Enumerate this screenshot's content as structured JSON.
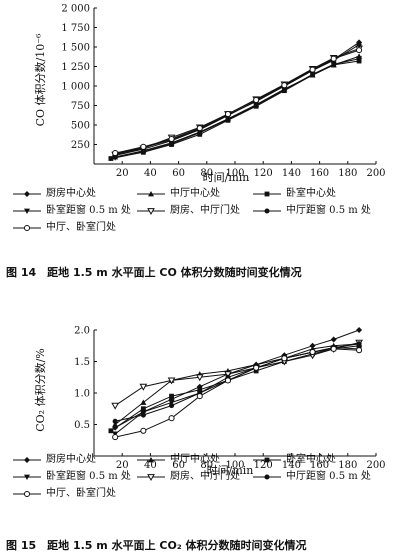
{
  "chart_data": [
    {
      "type": "line",
      "ylabel": "CO 体积分数/10⁻⁶",
      "xlabel": "时间/min",
      "xlim": [
        0,
        200
      ],
      "ylim": [
        0,
        2000
      ],
      "xticks": [
        "20",
        "40",
        "60",
        "80",
        "100",
        "120",
        "140",
        "160",
        "180",
        "200"
      ],
      "yticks": [
        "250",
        "500",
        "750",
        "1 000",
        "1 250",
        "1 500",
        "1 750",
        "2 000"
      ],
      "series": [
        {
          "name": "厨房中心处",
          "marker": "diamond",
          "x": [
            15,
            35,
            55,
            75,
            95,
            115,
            135,
            155,
            170,
            188
          ],
          "y": [
            110,
            190,
            300,
            440,
            620,
            810,
            1000,
            1200,
            1340,
            1560
          ]
        },
        {
          "name": "中厅中心处",
          "marker": "triangle",
          "x": [
            15,
            35,
            55,
            75,
            95,
            115,
            135,
            155,
            170,
            188
          ],
          "y": [
            90,
            170,
            270,
            410,
            580,
            760,
            960,
            1140,
            1270,
            1380
          ]
        },
        {
          "name": "卧室中心处",
          "marker": "square",
          "x": [
            12,
            35,
            55,
            75,
            95,
            115,
            135,
            155,
            170,
            188
          ],
          "y": [
            70,
            150,
            250,
            380,
            560,
            740,
            940,
            1140,
            1270,
            1320
          ]
        },
        {
          "name": "卧室距窗 0.5 m 处",
          "marker": "triangle-down",
          "x": [
            15,
            35,
            55,
            75,
            95,
            115,
            135,
            155,
            170,
            188
          ],
          "y": [
            80,
            160,
            260,
            400,
            570,
            750,
            950,
            1150,
            1280,
            1350
          ]
        },
        {
          "name": "厨房、中厅门处",
          "marker": "triangle-open",
          "x": [
            15,
            35,
            55,
            75,
            95,
            115,
            135,
            155,
            170,
            188
          ],
          "y": [
            120,
            200,
            340,
            470,
            640,
            830,
            1020,
            1220,
            1360,
            1480
          ]
        },
        {
          "name": "中厅距窗 0.5 m 处",
          "marker": "circle",
          "x": [
            15,
            35,
            55,
            75,
            95,
            115,
            135,
            155,
            170,
            188
          ],
          "y": [
            130,
            210,
            310,
            450,
            630,
            800,
            1000,
            1200,
            1330,
            1530
          ]
        },
        {
          "name": "中厅、卧室门处",
          "marker": "circle-open",
          "x": [
            15,
            35,
            55,
            75,
            95,
            115,
            135,
            155,
            170,
            188
          ],
          "y": [
            140,
            220,
            320,
            460,
            640,
            820,
            1010,
            1210,
            1350,
            1460
          ]
        }
      ]
    },
    {
      "type": "line",
      "ylabel": "CO₂ 体积分数/%",
      "xlabel": "时间/min",
      "xlim": [
        0,
        200
      ],
      "ylim": [
        0,
        2.0
      ],
      "xticks": [
        "20",
        "40",
        "60",
        "80",
        "100",
        "120",
        "140",
        "160",
        "180",
        "200"
      ],
      "yticks": [
        "0.5",
        "1.0",
        "1.5",
        "2.0"
      ],
      "series": [
        {
          "name": "厨房中心处",
          "marker": "diamond",
          "x": [
            15,
            35,
            55,
            75,
            95,
            115,
            135,
            155,
            170,
            188
          ],
          "y": [
            0.45,
            0.7,
            0.9,
            1.1,
            1.3,
            1.45,
            1.6,
            1.75,
            1.85,
            2.0
          ]
        },
        {
          "name": "中厅中心处",
          "marker": "triangle",
          "x": [
            15,
            35,
            55,
            75,
            95,
            115,
            135,
            155,
            170,
            188
          ],
          "y": [
            0.5,
            0.85,
            1.2,
            1.3,
            1.35,
            1.45,
            1.55,
            1.7,
            1.75,
            1.78
          ]
        },
        {
          "name": "卧室中心处",
          "marker": "square",
          "x": [
            12,
            35,
            55,
            75,
            95,
            115,
            135,
            155,
            170,
            188
          ],
          "y": [
            0.4,
            0.75,
            0.95,
            1.05,
            1.2,
            1.35,
            1.5,
            1.62,
            1.7,
            1.75
          ]
        },
        {
          "name": "卧室距窗 0.5 m 处",
          "marker": "triangle-down",
          "x": [
            15,
            35,
            55,
            75,
            95,
            115,
            135,
            155,
            170,
            188
          ],
          "y": [
            0.35,
            0.7,
            0.85,
            1.0,
            1.2,
            1.4,
            1.55,
            1.65,
            1.72,
            1.7
          ]
        },
        {
          "name": "厨房、中厅门处",
          "marker": "triangle-open",
          "x": [
            15,
            35,
            55,
            75,
            95,
            115,
            135,
            155,
            170,
            188
          ],
          "y": [
            0.8,
            1.1,
            1.2,
            1.25,
            1.3,
            1.4,
            1.5,
            1.6,
            1.7,
            1.8
          ]
        },
        {
          "name": "中厅距窗 0.5 m 处",
          "marker": "circle",
          "x": [
            15,
            35,
            55,
            75,
            95,
            115,
            135,
            155,
            170,
            188
          ],
          "y": [
            0.55,
            0.65,
            0.8,
            1.0,
            1.25,
            1.4,
            1.55,
            1.65,
            1.72,
            1.78
          ]
        },
        {
          "name": "中厅、卧室门处",
          "marker": "circle-open",
          "x": [
            15,
            35,
            55,
            75,
            95,
            115,
            135,
            155,
            170,
            188
          ],
          "y": [
            0.3,
            0.4,
            0.6,
            0.95,
            1.2,
            1.4,
            1.55,
            1.65,
            1.7,
            1.68
          ]
        }
      ]
    }
  ],
  "captions": [
    "图 14　距地 1.5 m 水平面上 CO 体积分数随时间变化情况",
    "图 15　距地 1.5 m 水平面上 CO₂ 体积分数随时间变化情况"
  ]
}
